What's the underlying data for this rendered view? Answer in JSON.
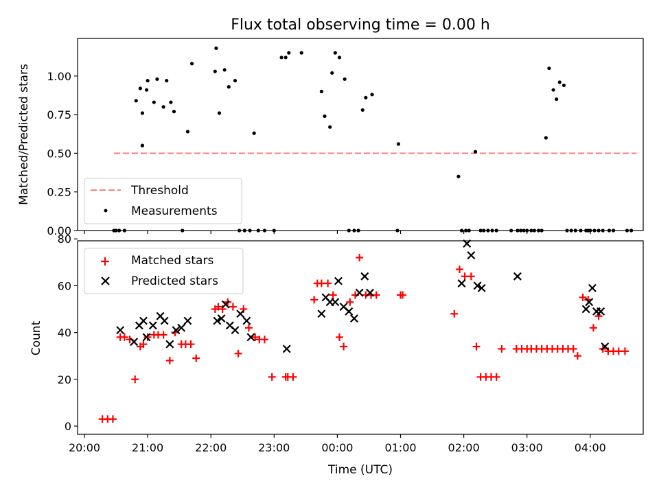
{
  "chart_data": [
    {
      "type": "scatter",
      "title": "Flux total observing time = 0.00 h",
      "ylabel": "Matched/Predicted stars",
      "xlabel": "",
      "ylim": [
        0,
        1.24
      ],
      "yticks": [
        "0.00",
        "0.25",
        "0.50",
        "0.75",
        "1.00"
      ],
      "grid": false,
      "legend_position": "lower-left",
      "threshold": {
        "name": "Threshold",
        "value": 0.5,
        "x": [
          "20:28",
          "04:44"
        ],
        "color": "#ff7f7f"
      },
      "series": [
        {
          "name": "Measurements",
          "color": "#000000",
          "marker": "dot",
          "x": [
            "20:28",
            "20:30",
            "20:33",
            "20:38",
            "20:53",
            "20:55",
            "20:49",
            "20:55",
            "21:00",
            "20:59",
            "21:06",
            "21:09",
            "21:15",
            "21:18",
            "21:22",
            "21:25",
            "21:33",
            "21:38",
            "21:42",
            "22:04",
            "22:05",
            "22:08",
            "22:13",
            "22:17",
            "22:23",
            "22:27",
            "22:32",
            "22:37",
            "22:41",
            "22:45",
            "22:51",
            "23:00",
            "23:07",
            "23:11",
            "23:14",
            "23:26",
            "23:45",
            "23:48",
            "23:53",
            "23:58",
            "23:55",
            "00:02",
            "00:07",
            "00:11",
            "00:16",
            "00:20",
            "00:24",
            "00:27",
            "00:33",
            "00:57",
            "00:58",
            "01:55",
            "01:58",
            "02:02",
            "02:05",
            "02:11",
            "02:16",
            "02:19",
            "02:23",
            "02:27",
            "02:31",
            "02:45",
            "02:51",
            "02:54",
            "02:57",
            "03:00",
            "03:04",
            "03:07",
            "03:11",
            "03:14",
            "03:18",
            "03:21",
            "03:25",
            "03:28",
            "03:31",
            "03:35",
            "03:38",
            "03:42",
            "03:46",
            "03:51",
            "03:56",
            "03:58",
            "04:00",
            "04:04",
            "04:08",
            "04:12",
            "04:18",
            "04:22",
            "04:35",
            "04:39"
          ],
          "y": [
            0,
            0,
            0,
            0,
            0.92,
            0.55,
            0.84,
            0.76,
            0.97,
            0.91,
            0.83,
            0.98,
            0.8,
            0.97,
            0.83,
            0.77,
            0,
            0.64,
            1.08,
            1.03,
            1.18,
            0.76,
            1.04,
            0.93,
            0.97,
            0,
            0,
            0,
            0.63,
            0,
            0,
            0,
            1.12,
            1.12,
            1.15,
            1.15,
            0.9,
            0.74,
            0.67,
            1.15,
            1.02,
            1.12,
            0.98,
            0,
            0,
            0,
            0.78,
            0.86,
            0.88,
            0,
            0.56,
            0.35,
            0,
            0,
            0,
            0.51,
            0,
            0,
            0,
            0,
            0,
            0,
            0,
            0,
            0,
            0,
            0,
            0,
            0,
            0,
            0.6,
            1.05,
            0.91,
            0.85,
            0.96,
            0.94,
            0,
            0,
            0,
            0,
            0,
            0,
            0,
            0,
            0,
            0,
            0,
            0,
            0,
            0
          ]
        }
      ]
    },
    {
      "type": "scatter",
      "title": "",
      "ylabel": "Count",
      "xlabel": "Time (UTC)",
      "ylim": [
        0,
        80
      ],
      "yticks": [
        "0",
        "20",
        "40",
        "60",
        "80"
      ],
      "xticks": [
        "20:00",
        "21:00",
        "22:00",
        "23:00",
        "00:00",
        "01:00",
        "02:00",
        "03:00",
        "04:00"
      ],
      "grid": false,
      "legend_position": "upper-left",
      "series": [
        {
          "name": "Matched stars",
          "color": "#ff0000",
          "marker": "plus",
          "x": [
            "20:17",
            "20:22",
            "20:27",
            "20:34",
            "20:38",
            "20:43",
            "20:48",
            "20:53",
            "20:56",
            "21:00",
            "21:06",
            "21:10",
            "21:15",
            "21:21",
            "21:26",
            "21:32",
            "21:36",
            "21:41",
            "21:46",
            "22:04",
            "22:07",
            "22:11",
            "22:16",
            "22:21",
            "22:26",
            "22:31",
            "22:36",
            "22:42",
            "22:46",
            "22:51",
            "22:58",
            "23:11",
            "23:13",
            "23:18",
            "23:38",
            "23:41",
            "23:45",
            "23:51",
            "23:56",
            "00:02",
            "00:06",
            "00:12",
            "00:17",
            "00:21",
            "00:27",
            "00:32",
            "00:37",
            "01:00",
            "01:02",
            "01:51",
            "01:56",
            "02:01",
            "02:07",
            "02:12",
            "02:16",
            "02:21",
            "02:26",
            "02:31",
            "02:36",
            "02:50",
            "02:55",
            "03:00",
            "03:04",
            "03:09",
            "03:14",
            "03:19",
            "03:24",
            "03:29",
            "03:34",
            "03:39",
            "03:44",
            "03:48",
            "03:53",
            "03:58",
            "04:03",
            "04:08",
            "04:12",
            "04:17",
            "04:22",
            "04:27",
            "04:33"
          ],
          "y": [
            3,
            3,
            3,
            38,
            38,
            37,
            20,
            34,
            35,
            38,
            39,
            39,
            39,
            28,
            40,
            35,
            35,
            35,
            29,
            50,
            51,
            50,
            53,
            51,
            31,
            50,
            42,
            38,
            37,
            37,
            21,
            21,
            21,
            21,
            54,
            61,
            61,
            61,
            56,
            38,
            34,
            53,
            56,
            72,
            56,
            56,
            56,
            56,
            56,
            48,
            67,
            64,
            64,
            34,
            21,
            21,
            21,
            21,
            33,
            33,
            33,
            33,
            33,
            33,
            33,
            33,
            33,
            33,
            33,
            33,
            33,
            30,
            55,
            54,
            42,
            47,
            33,
            32,
            32,
            32,
            32
          ]
        },
        {
          "name": "Predicted stars",
          "color": "#000000",
          "marker": "x",
          "x": [
            "20:34",
            "20:47",
            "20:52",
            "20:56",
            "20:59",
            "21:05",
            "21:12",
            "21:16",
            "21:21",
            "21:27",
            "21:32",
            "21:38",
            "22:06",
            "22:10",
            "22:14",
            "22:18",
            "22:23",
            "22:28",
            "22:34",
            "22:38",
            "23:12",
            "23:45",
            "23:49",
            "23:53",
            "23:58",
            "00:01",
            "00:06",
            "00:11",
            "00:16",
            "00:21",
            "00:26",
            "00:31",
            "01:58",
            "02:03",
            "02:07",
            "02:13",
            "02:17",
            "02:51",
            "03:56",
            "03:59",
            "04:02",
            "04:06",
            "04:10",
            "04:14"
          ],
          "y": [
            41,
            36,
            43,
            45,
            38,
            43,
            47,
            45,
            35,
            41,
            42,
            45,
            45,
            46,
            52,
            43,
            41,
            48,
            45,
            38,
            33,
            48,
            55,
            53,
            53,
            62,
            51,
            49,
            46,
            57,
            64,
            57,
            61,
            78,
            73,
            60,
            59,
            64,
            50,
            53,
            59,
            49,
            49,
            34
          ]
        }
      ]
    }
  ]
}
